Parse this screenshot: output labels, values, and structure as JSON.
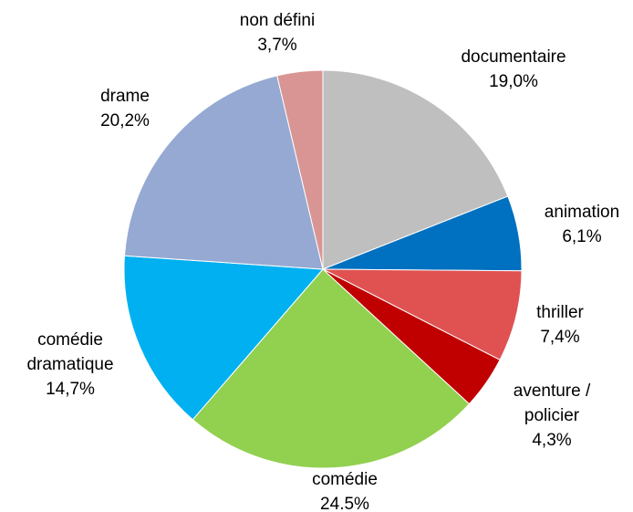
{
  "chart_data": {
    "type": "pie",
    "categories": [
      "documentaire",
      "animation",
      "thriller",
      "aventure / policier",
      "comédie",
      "comédie dramatique",
      "drame",
      "non défini"
    ],
    "values": [
      19.0,
      6.1,
      7.4,
      4.3,
      24.5,
      14.7,
      20.2,
      3.7
    ],
    "value_labels": [
      "19,0%",
      "6,1%",
      "7,4%",
      "4,3%",
      "24.5%",
      "14,7%",
      "20,2%",
      "3,7%"
    ],
    "colors": [
      "#bfbfbf",
      "#0070c0",
      "#e05252",
      "#c00000",
      "#92d050",
      "#00b0f0",
      "#95a9d2",
      "#d99594"
    ]
  }
}
